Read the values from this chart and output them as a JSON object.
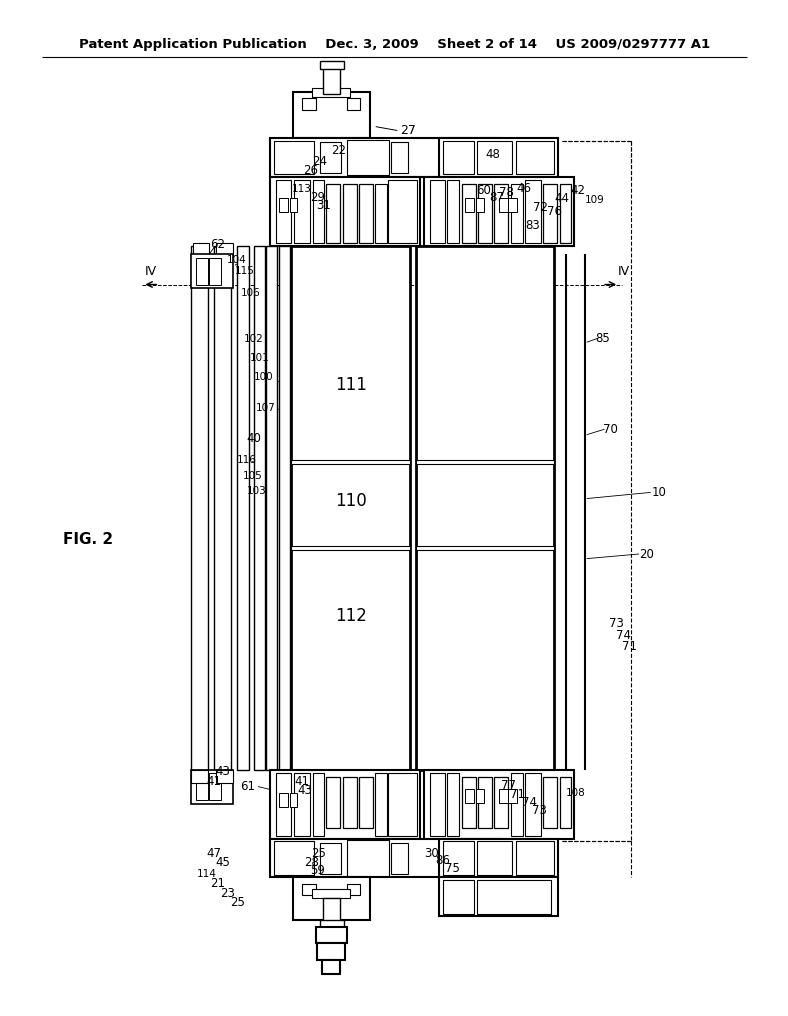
{
  "bg_color": "#ffffff",
  "lc": "#000000",
  "header": "Patent Application Publication    Dec. 3, 2009    Sheet 2 of 14    US 2009/0297777 A1"
}
